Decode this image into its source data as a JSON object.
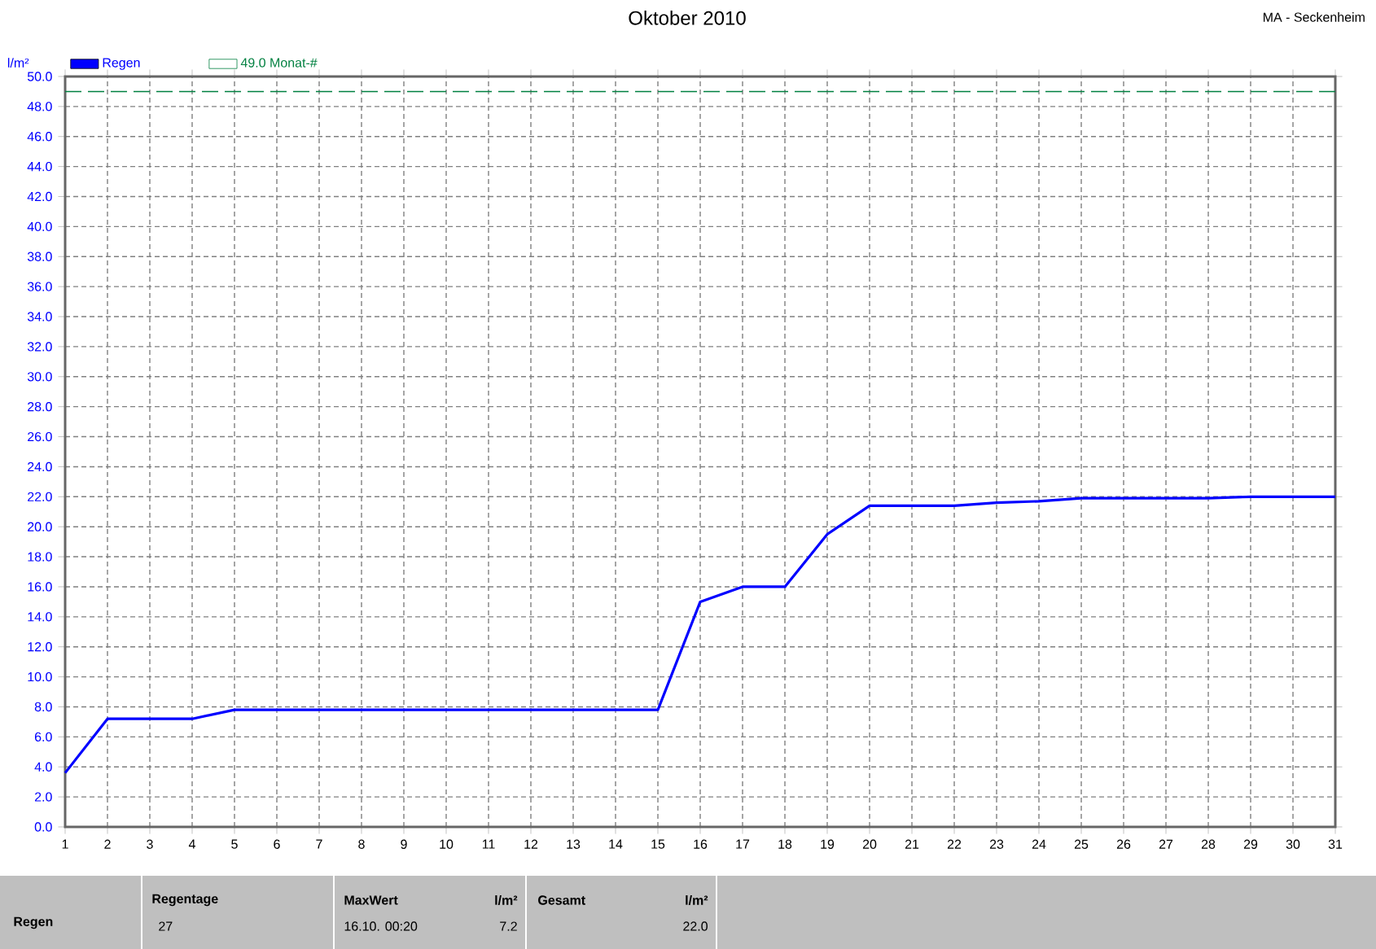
{
  "chart_data": {
    "type": "line",
    "title": "Oktober 2010",
    "subtitle": "MA - Seckenheim",
    "ylabel": "l/m²",
    "x": [
      1,
      2,
      3,
      4,
      5,
      6,
      7,
      8,
      9,
      10,
      11,
      12,
      13,
      14,
      15,
      16,
      17,
      18,
      19,
      20,
      21,
      22,
      23,
      24,
      25,
      26,
      27,
      28,
      29,
      30,
      31
    ],
    "series": [
      {
        "name": "Regen",
        "color": "#0000ff",
        "values": [
          3.6,
          7.2,
          7.2,
          7.2,
          7.8,
          7.8,
          7.8,
          7.8,
          7.8,
          7.8,
          7.8,
          7.8,
          7.8,
          7.8,
          7.8,
          15.0,
          16.0,
          16.0,
          19.5,
          21.4,
          21.4,
          21.4,
          21.6,
          21.7,
          21.9,
          21.9,
          21.9,
          21.9,
          22.0,
          22.0,
          22.0
        ]
      }
    ],
    "xlim": [
      1,
      31
    ],
    "xticks": [
      1,
      2,
      3,
      4,
      5,
      6,
      7,
      8,
      9,
      10,
      11,
      12,
      13,
      14,
      15,
      16,
      17,
      18,
      19,
      20,
      21,
      22,
      23,
      24,
      25,
      26,
      27,
      28,
      29,
      30,
      31
    ],
    "ylim": [
      0,
      50
    ],
    "yticks": [
      {
        "value": 0,
        "label": "0.0"
      },
      {
        "value": 2,
        "label": "2.0"
      },
      {
        "value": 4,
        "label": "4.0"
      },
      {
        "value": 6,
        "label": "6.0"
      },
      {
        "value": 8,
        "label": "8.0"
      },
      {
        "value": 10,
        "label": "10.0"
      },
      {
        "value": 12,
        "label": "12.0"
      },
      {
        "value": 14,
        "label": "14.0"
      },
      {
        "value": 16,
        "label": "16.0"
      },
      {
        "value": 18,
        "label": "18.0"
      },
      {
        "value": 20,
        "label": "20.0"
      },
      {
        "value": 22,
        "label": "22.0"
      },
      {
        "value": 24,
        "label": "24.0"
      },
      {
        "value": 26,
        "label": "26.0"
      },
      {
        "value": 28,
        "label": "28.0"
      },
      {
        "value": 30,
        "label": "30.0"
      },
      {
        "value": 32,
        "label": "32.0"
      },
      {
        "value": 34,
        "label": "34.0"
      },
      {
        "value": 36,
        "label": "36.0"
      },
      {
        "value": 38,
        "label": "38.0"
      },
      {
        "value": 40,
        "label": "40.0"
      },
      {
        "value": 42,
        "label": "42.0"
      },
      {
        "value": 44,
        "label": "44.0"
      },
      {
        "value": 46,
        "label": "46.0"
      },
      {
        "value": 48,
        "label": "48.0"
      },
      {
        "value": 50,
        "label": "50.0"
      }
    ],
    "ref_lines": [
      {
        "axis": "y",
        "value": 49.0,
        "label": "49.0 Monat-#",
        "color": "#008040",
        "line_style": "dashed"
      }
    ],
    "grid": true,
    "legend": "top left",
    "marker": "none",
    "line_style": "solid",
    "annotations": [
      "Regen",
      "Regentage",
      "27",
      "MaxWert",
      "l/m²",
      "16.10.  00:20",
      "7.2",
      "Gesamt",
      "l/m²",
      "22.0"
    ]
  }
}
